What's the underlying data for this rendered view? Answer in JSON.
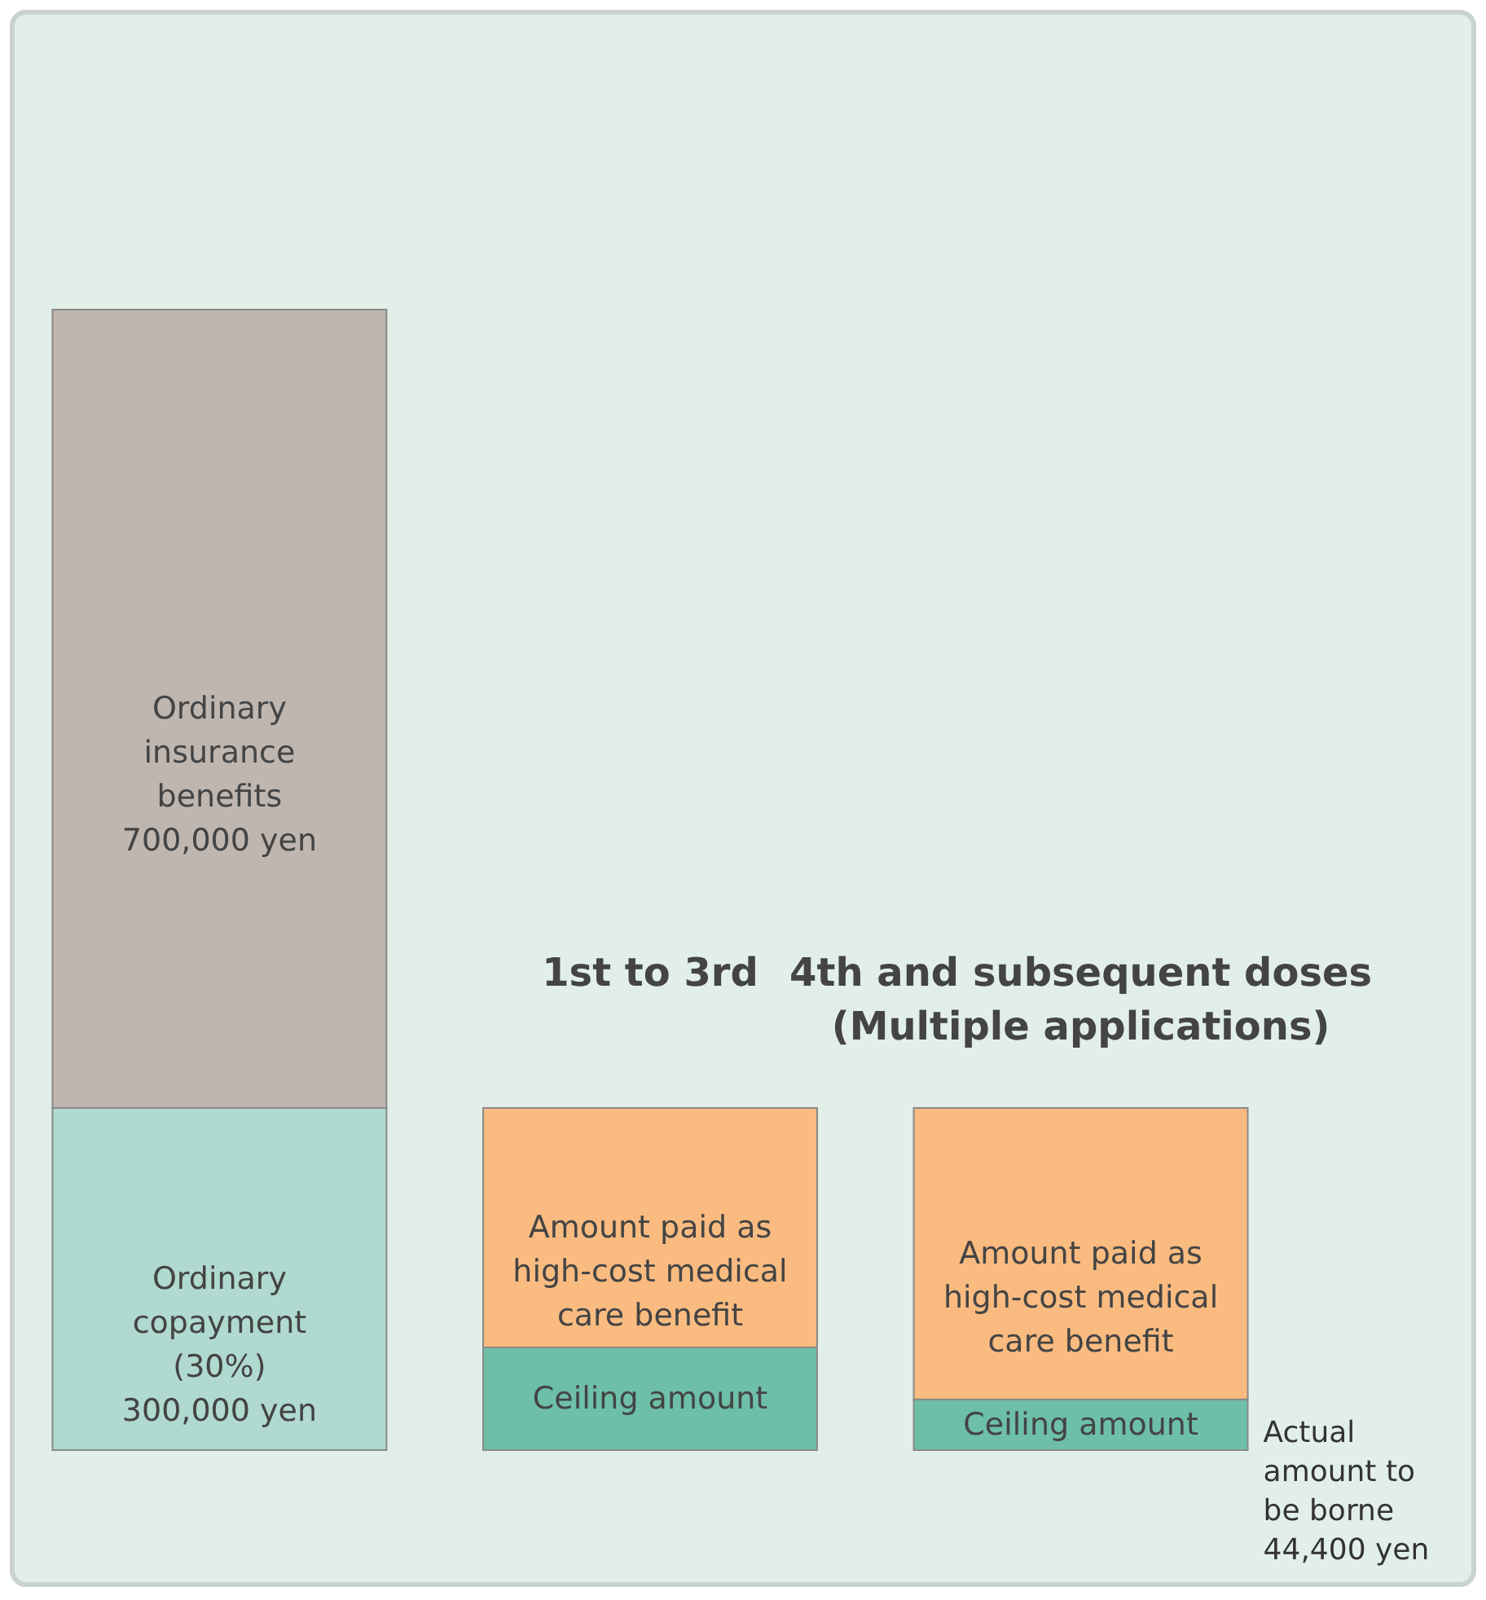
{
  "chart_data": {
    "type": "bar",
    "stacked": true,
    "tick_labels": false,
    "ylim": [
      0,
      1000000
    ],
    "categories": [
      null,
      "1st to 3rd",
      "4th and subsequent doses (Multiple applications)"
    ],
    "series": [
      {
        "colors": [
          "#b0d9cf",
          "#6dbfa8",
          "#6dbfa8"
        ],
        "values": [
          300000,
          90000,
          44400
        ],
        "value_labels": [
          "Ordinary copayment (30%) 300,000 yen",
          "Ceiling amount",
          "Ceiling amount"
        ]
      },
      {
        "colors": [
          "#bfb6b0",
          "#f9bb80",
          "#f9bb80"
        ],
        "values": [
          700000,
          210000,
          255600
        ],
        "value_labels": [
          "Ordinary insurance benefits 700,000 yen",
          "Amount paid as high-cost medical care benefit",
          "Amount paid as high-cost medical care benefit"
        ]
      }
    ],
    "annotations": [
      "Actual amount to be borne 44,400 yen"
    ]
  }
}
